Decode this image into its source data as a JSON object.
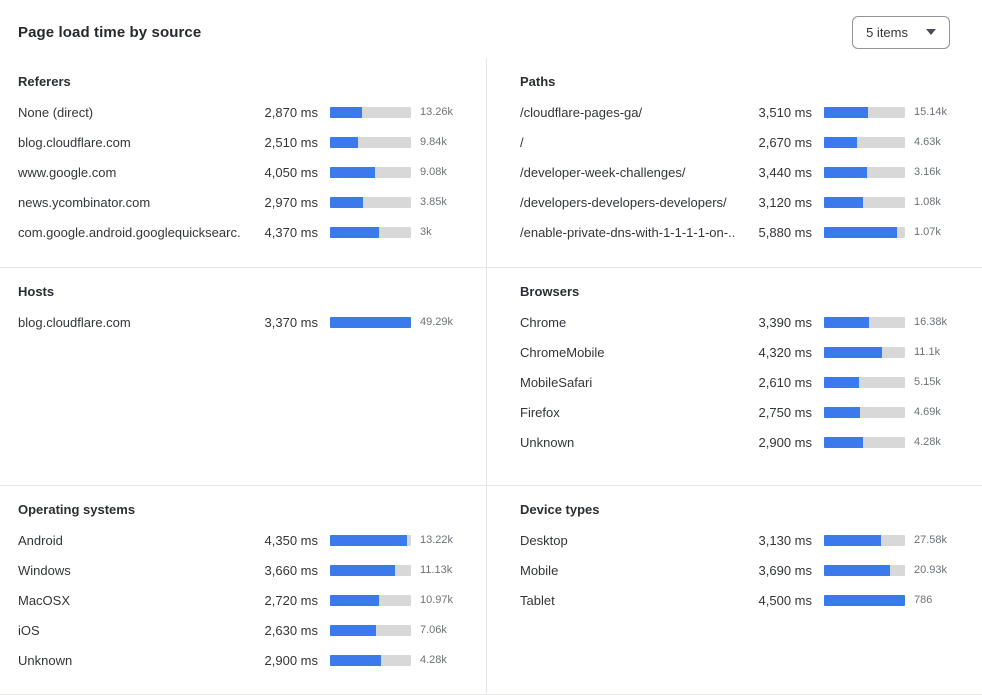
{
  "header": {
    "title": "Page load time by source",
    "dropdown": {
      "value": "5 items"
    }
  },
  "colors": {
    "bar_fill": "#3b7aed",
    "bar_track": "#d8d8d8"
  },
  "panels": [
    {
      "id": "referers",
      "title": "Referers",
      "grid": {
        "col": 1,
        "row": 1
      },
      "rows": [
        {
          "label": "None (direct)",
          "ms": "2,870 ms",
          "count": "13.26k",
          "pct": 40
        },
        {
          "label": "blog.cloudflare.com",
          "ms": "2,510 ms",
          "count": "9.84k",
          "pct": 35
        },
        {
          "label": "www.google.com",
          "ms": "4,050 ms",
          "count": "9.08k",
          "pct": 56
        },
        {
          "label": "news.ycombinator.com",
          "ms": "2,970 ms",
          "count": "3.85k",
          "pct": 41
        },
        {
          "label": "com.google.android.googlequicksearc...",
          "ms": "4,370 ms",
          "count": "3k",
          "pct": 61
        }
      ]
    },
    {
      "id": "paths",
      "title": "Paths",
      "grid": {
        "col": 2,
        "row": 1
      },
      "rows": [
        {
          "label": "/cloudflare-pages-ga/",
          "ms": "3,510 ms",
          "count": "15.14k",
          "pct": 54
        },
        {
          "label": "/",
          "ms": "2,670 ms",
          "count": "4.63k",
          "pct": 41
        },
        {
          "label": "/developer-week-challenges/",
          "ms": "3,440 ms",
          "count": "3.16k",
          "pct": 53
        },
        {
          "label": "/developers-developers-developers/",
          "ms": "3,120 ms",
          "count": "1.08k",
          "pct": 48
        },
        {
          "label": "/enable-private-dns-with-1-1-1-1-on-...",
          "ms": "5,880 ms",
          "count": "1.07k",
          "pct": 90
        }
      ]
    },
    {
      "id": "hosts",
      "title": "Hosts",
      "grid": {
        "col": 1,
        "row": 2
      },
      "rows": [
        {
          "label": "blog.cloudflare.com",
          "ms": "3,370 ms",
          "count": "49.29k",
          "pct": 100
        }
      ]
    },
    {
      "id": "browsers",
      "title": "Browsers",
      "grid": {
        "col": 2,
        "row": 2
      },
      "rows": [
        {
          "label": "Chrome",
          "ms": "3,390 ms",
          "count": "16.38k",
          "pct": 56
        },
        {
          "label": "ChromeMobile",
          "ms": "4,320 ms",
          "count": "11.1k",
          "pct": 71
        },
        {
          "label": "MobileSafari",
          "ms": "2,610 ms",
          "count": "5.15k",
          "pct": 43
        },
        {
          "label": "Firefox",
          "ms": "2,750 ms",
          "count": "4.69k",
          "pct": 45
        },
        {
          "label": "Unknown",
          "ms": "2,900 ms",
          "count": "4.28k",
          "pct": 48
        }
      ]
    },
    {
      "id": "operating-systems",
      "title": "Operating systems",
      "grid": {
        "col": 1,
        "row": 3
      },
      "rows": [
        {
          "label": "Android",
          "ms": "4,350 ms",
          "count": "13.22k",
          "pct": 95
        },
        {
          "label": "Windows",
          "ms": "3,660 ms",
          "count": "11.13k",
          "pct": 80
        },
        {
          "label": "MacOSX",
          "ms": "2,720 ms",
          "count": "10.97k",
          "pct": 60
        },
        {
          "label": "iOS",
          "ms": "2,630 ms",
          "count": "7.06k",
          "pct": 57
        },
        {
          "label": "Unknown",
          "ms": "2,900 ms",
          "count": "4.28k",
          "pct": 63
        }
      ]
    },
    {
      "id": "device-types",
      "title": "Device types",
      "grid": {
        "col": 2,
        "row": 3
      },
      "rows": [
        {
          "label": "Desktop",
          "ms": "3,130 ms",
          "count": "27.58k",
          "pct": 70
        },
        {
          "label": "Mobile",
          "ms": "3,690 ms",
          "count": "20.93k",
          "pct": 82
        },
        {
          "label": "Tablet",
          "ms": "4,500 ms",
          "count": "786",
          "pct": 100
        }
      ]
    }
  ]
}
